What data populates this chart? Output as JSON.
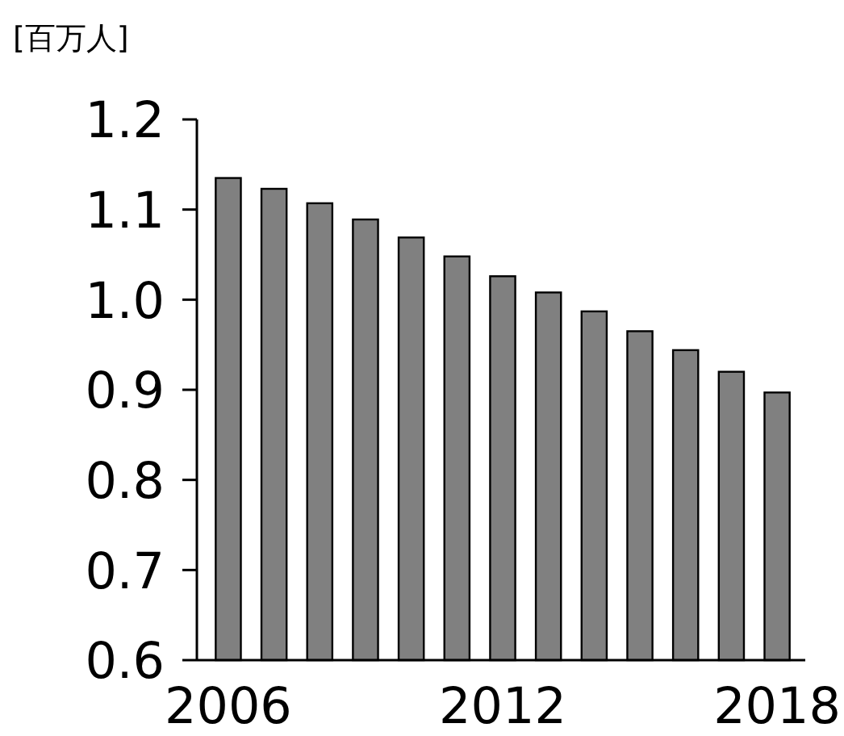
{
  "chart_data": {
    "type": "bar",
    "ylabel": "[百万人]",
    "categories": [
      "2006",
      null,
      null,
      null,
      null,
      null,
      "2012",
      null,
      null,
      null,
      null,
      null,
      "2018"
    ],
    "values": [
      1.135,
      1.123,
      1.107,
      1.089,
      1.069,
      1.048,
      1.026,
      1.008,
      0.987,
      0.965,
      0.944,
      0.92,
      0.897
    ],
    "color": "#808080",
    "ylim": [
      0.6,
      1.2
    ],
    "yticks": [
      0.6,
      0.7,
      0.8,
      0.9,
      {
        "value": 1,
        "label": "1.0"
      },
      1.1,
      1.2
    ],
    "grid": false
  }
}
